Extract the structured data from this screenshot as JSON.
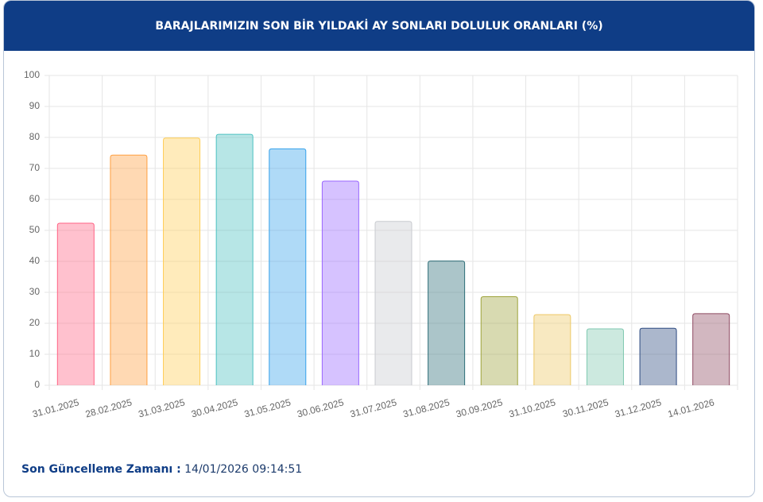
{
  "header": {
    "title": "BARAJLARIMIZIN SON BİR YILDAKİ AY SONLARI DOLULUK ORANLARI (%)"
  },
  "chart_data": {
    "type": "bar",
    "categories": [
      "31.01.2025",
      "28.02.2025",
      "31.03.2025",
      "30.04.2025",
      "31.05.2025",
      "30.06.2025",
      "31.07.2025",
      "31.08.2025",
      "30.09.2025",
      "31.10.2025",
      "30.11.2025",
      "31.12.2025",
      "14.01.2026"
    ],
    "values": [
      52.3,
      74.3,
      79.8,
      81.0,
      76.3,
      65.9,
      52.9,
      40.1,
      28.6,
      22.8,
      18.2,
      18.4,
      23.1
    ],
    "colors": [
      "#ff6384",
      "#ff9f40",
      "#ffcd56",
      "#4bc0c0",
      "#36a2eb",
      "#9966ff",
      "#c9cbcf",
      "#2e6f78",
      "#9ea33c",
      "#edc865",
      "#7fc8b0",
      "#2c4a80",
      "#8e4a62"
    ],
    "ylim": [
      0,
      100
    ],
    "yticks": [
      0,
      10,
      20,
      30,
      40,
      50,
      60,
      70,
      80,
      90,
      100
    ],
    "grid": true
  },
  "footer": {
    "label": "Son Güncelleme Zamanı :",
    "value": "14/01/2026 09:14:51"
  }
}
